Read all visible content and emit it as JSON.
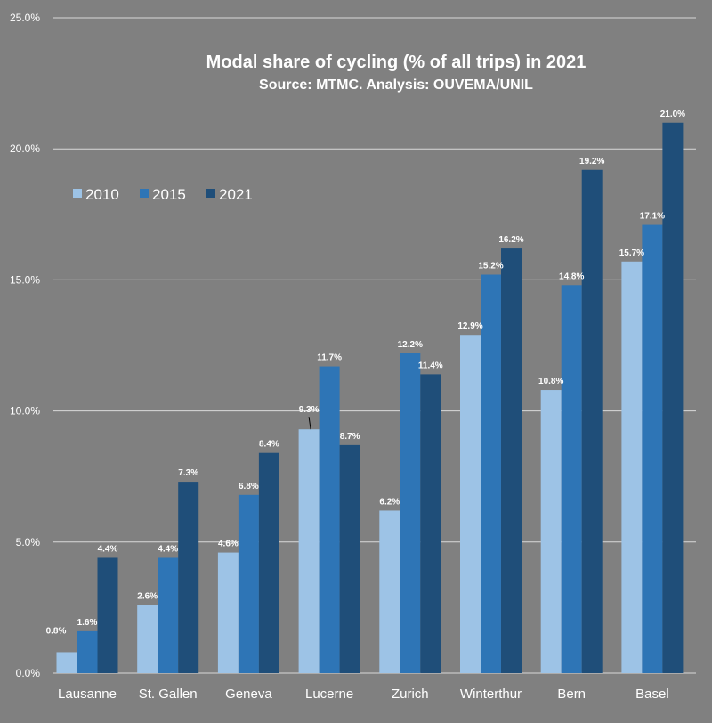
{
  "chart_data": {
    "type": "bar",
    "title": "Modal share of cycling (% of all trips) in 2021",
    "subtitle": "Source: MTMC. Analysis: OUVEMA/UNIL",
    "xlabel": "",
    "ylabel": "",
    "ylim": [
      0,
      25
    ],
    "yticks": [
      "0.0%",
      "5.0%",
      "10.0%",
      "15.0%",
      "20.0%",
      "25.0%"
    ],
    "grid": true,
    "legend_position": "left",
    "categories": [
      "Lausanne",
      "St. Gallen",
      "Geneva",
      "Lucerne",
      "Zurich",
      "Winterthur",
      "Bern",
      "Basel"
    ],
    "series": [
      {
        "name": "2010",
        "color": "#9dc3e6",
        "values": [
          0.8,
          2.6,
          4.6,
          9.3,
          6.2,
          12.9,
          10.8,
          15.7
        ],
        "labels": [
          "0.8%",
          "2.6%",
          "4.6%",
          "9.3%",
          "6.2%",
          "12.9%",
          "10.8%",
          "15.7%"
        ]
      },
      {
        "name": "2015",
        "color": "#2e75b6",
        "values": [
          1.6,
          4.4,
          6.8,
          11.7,
          12.2,
          15.2,
          14.8,
          17.1
        ],
        "labels": [
          "1.6%",
          "4.4%",
          "6.8%",
          "11.7%",
          "12.2%",
          "15.2%",
          "14.8%",
          "17.1%"
        ]
      },
      {
        "name": "2021",
        "color": "#1f4e79",
        "values": [
          4.4,
          7.3,
          8.4,
          8.7,
          11.4,
          16.2,
          19.2,
          21.0
        ],
        "labels": [
          "4.4%",
          "7.3%",
          "8.4%",
          "8.7%",
          "11.4%",
          "16.2%",
          "19.2%",
          "21.0%"
        ]
      }
    ]
  }
}
